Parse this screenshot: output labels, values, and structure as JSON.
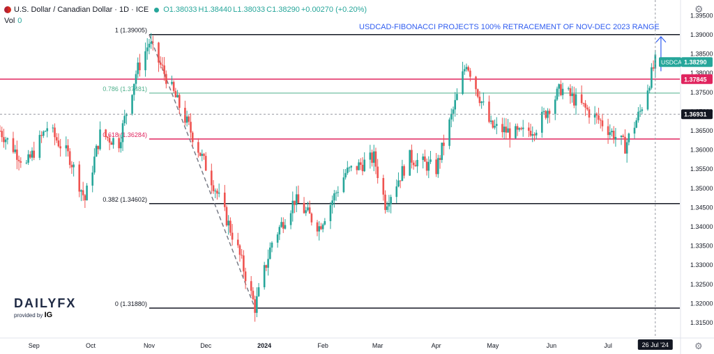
{
  "header": {
    "symbol": "U.S. Dollar / Canadian Dollar · 1D · ICE",
    "open": "O1.38033",
    "high": "H1.38440",
    "low": "L1.38033",
    "close": "C1.38290",
    "change": "+0.00270 (+0.20%)",
    "volume_label": "Vol",
    "volume_value": "0"
  },
  "annotation_title": "USDCAD-FIBONACCI PROJECTS 100% RETRACEMENT OF NOV-DEC 2023 RANGE",
  "logo": {
    "name": "DAILYFX",
    "provided_by": "provided by",
    "brand": "IG"
  },
  "colors": {
    "up": "#26a69a",
    "down": "#ef5350",
    "fib_red": "#e0245e",
    "fib_green": "#4caf8a",
    "fib_dark": "#131722",
    "annotation_blue": "#2f5cf0"
  },
  "chart_data": {
    "type": "candlestick",
    "ylim": [
      1.313,
      1.398
    ],
    "y_ticks": [
      "1.39500",
      "1.39000",
      "1.38500",
      "1.38000",
      "1.37500",
      "1.37000",
      "1.36500",
      "1.36000",
      "1.35500",
      "1.35000",
      "1.34500",
      "1.34000",
      "1.33500",
      "1.33000",
      "1.32500",
      "1.32000",
      "1.31500"
    ],
    "x_labels": [
      {
        "label": "Sep",
        "date": "2023-09-01"
      },
      {
        "label": "Oct",
        "date": "2023-10-01"
      },
      {
        "label": "Nov",
        "date": "2023-11-01"
      },
      {
        "label": "Dec",
        "date": "2023-12-01"
      },
      {
        "label": "2024",
        "date": "2024-01-01"
      },
      {
        "label": "Feb",
        "date": "2024-02-01"
      },
      {
        "label": "Mar",
        "date": "2024-03-01"
      },
      {
        "label": "Apr",
        "date": "2024-04-01"
      },
      {
        "label": "May",
        "date": "2024-05-01"
      },
      {
        "label": "Jun",
        "date": "2024-06-01"
      },
      {
        "label": "Jul",
        "date": "2024-07-01"
      }
    ],
    "cursor_date_label": "26 Jul '24",
    "current_price_label": "USDCAD",
    "current_price": "1.38290",
    "level_labels": [
      {
        "label": "1.37845",
        "value": 1.37845
      },
      {
        "label": "1.36931",
        "value": 1.36931
      }
    ],
    "fib_levels": [
      {
        "label": "1 (1.39005)",
        "value": 1.39005
      },
      {
        "label": "0.786 (1.37481)",
        "value": 1.37481
      },
      {
        "label": "0.618 (1.36284)",
        "value": 1.36284
      },
      {
        "label": "0.382 (1.34602)",
        "value": 1.34602
      },
      {
        "label": "0 (1.31880)",
        "value": 1.3188
      }
    ],
    "resistance_line": 1.37845,
    "crosshair_price": 1.36931,
    "fib_anchor": {
      "start_date": "2023-11-01",
      "start": 1.39005,
      "end_date": "2023-12-27",
      "end": 1.3188
    },
    "arrow": {
      "date": "2024-07-29",
      "from": 1.3805,
      "to": 1.3895
    },
    "anchors": [
      [
        "2023-08-14",
        1.365
      ],
      [
        "2023-08-28",
        1.356
      ],
      [
        "2023-09-08",
        1.366
      ],
      [
        "2023-09-20",
        1.358
      ],
      [
        "2023-09-28",
        1.347
      ],
      [
        "2023-10-06",
        1.364
      ],
      [
        "2023-10-16",
        1.362
      ],
      [
        "2023-10-25",
        1.38
      ],
      [
        "2023-11-01",
        1.388
      ],
      [
        "2023-11-10",
        1.379
      ],
      [
        "2023-11-22",
        1.366
      ],
      [
        "2023-12-06",
        1.35
      ],
      [
        "2023-12-18",
        1.334
      ],
      [
        "2023-12-27",
        1.319
      ],
      [
        "2024-01-05",
        1.336
      ],
      [
        "2024-01-17",
        1.347
      ],
      [
        "2024-01-30",
        1.34
      ],
      [
        "2024-02-13",
        1.354
      ],
      [
        "2024-02-28",
        1.358
      ],
      [
        "2024-03-05",
        1.346
      ],
      [
        "2024-03-18",
        1.358
      ],
      [
        "2024-04-01",
        1.355
      ],
      [
        "2024-04-11",
        1.372
      ],
      [
        "2024-04-17",
        1.383
      ],
      [
        "2024-04-30",
        1.366
      ],
      [
        "2024-05-15",
        1.364
      ],
      [
        "2024-05-24",
        1.366
      ],
      [
        "2024-06-06",
        1.376
      ],
      [
        "2024-06-11",
        1.374
      ],
      [
        "2024-06-28",
        1.367
      ],
      [
        "2024-07-10",
        1.361
      ],
      [
        "2024-07-18",
        1.37
      ],
      [
        "2024-07-26",
        1.3829
      ]
    ]
  }
}
